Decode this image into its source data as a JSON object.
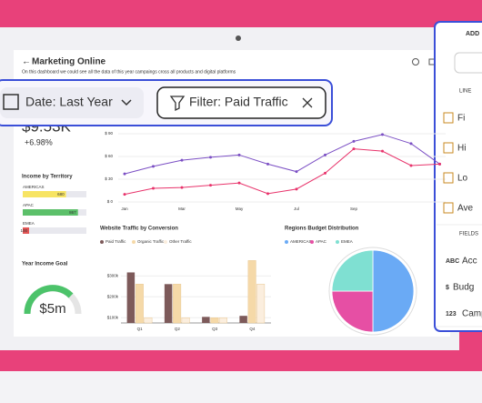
{
  "header": {
    "title": "Marketing Online",
    "subtitle": "On this dashboard we could see all the data of this year campaings cross all products and digital platforms"
  },
  "filters": [
    {
      "label": "Date: Last Year"
    },
    {
      "label": "Filter: Paid Traffic"
    }
  ],
  "kpi": {
    "value": "$9.53K",
    "change": "+6.98%"
  },
  "territory": {
    "title": "Income by Territory",
    "xlim": [
      0,
      1000
    ],
    "rows": [
      {
        "name": "AMERICAS",
        "value": 680,
        "color": "#f7e463"
      },
      {
        "name": "APAC",
        "value": 867,
        "color": "#5cc06a"
      },
      {
        "name": "EMEA",
        "value": 100,
        "color": "#e25555"
      }
    ]
  },
  "goal": {
    "title": "Year Income Goal",
    "value": "$5m"
  },
  "line_chart": {
    "type": "line",
    "x": [
      "Jan",
      null,
      "Mar",
      null,
      "May",
      null,
      "Jul",
      null,
      "Sep",
      null,
      null,
      null
    ],
    "ylim": [
      0,
      90
    ],
    "yticks": [
      {
        "value": 0,
        "label": "$ 0"
      },
      {
        "value": 30,
        "label": "$ 30"
      },
      {
        "value": 60,
        "label": "$ 60"
      },
      {
        "value": 90,
        "label": "$ 90"
      }
    ],
    "series": [
      {
        "color": "#7b4fc4",
        "values": [
          37,
          47,
          55,
          59,
          62,
          50,
          40,
          62,
          80,
          89,
          77,
          50
        ]
      },
      {
        "color": "#e8336b",
        "values": [
          10,
          18,
          19,
          22,
          25,
          11,
          17,
          38,
          70,
          67,
          48,
          50
        ]
      }
    ]
  },
  "bar_chart": {
    "type": "bar",
    "title": "Website Traffic by Conversion",
    "categories": [
      "Q1",
      "Q2",
      "Q3",
      "Q4"
    ],
    "ylim": [
      75,
      380
    ],
    "yticks": [
      {
        "value": 100,
        "label": "$100k"
      },
      {
        "value": 200,
        "label": "$200k"
      },
      {
        "value": 300,
        "label": "$300k"
      }
    ],
    "series": [
      {
        "name": "Paid Traffic",
        "color": "#7d5a5a",
        "values": [
          317,
          261,
          104,
          109
        ]
      },
      {
        "name": "Organic Traffic",
        "color": "#f5d9a8",
        "values": [
          261,
          261,
          100,
          374
        ]
      },
      {
        "name": "Other Traffic",
        "color": "#fbeede",
        "values": [
          100,
          100,
          100,
          261
        ]
      }
    ]
  },
  "pie_chart": {
    "type": "pie",
    "title": "Regions Budget Distribution",
    "categories": [
      "AMERICAS",
      "APAC",
      "EMEA"
    ],
    "values": [
      50,
      25,
      25
    ],
    "colors": [
      "#6aaaf5",
      "#e64fa4",
      "#7fe0d2"
    ]
  },
  "panel": {
    "title": "ADD",
    "sections": [
      {
        "title": "LINE",
        "items": [
          {
            "label": "Fi"
          },
          {
            "label": "Hi"
          },
          {
            "label": "Lo"
          },
          {
            "label": "Ave"
          }
        ]
      },
      {
        "title": "FIELDS",
        "items": [
          {
            "icon": "ABC",
            "label": "Acc"
          },
          {
            "icon": "$",
            "label": "Budg"
          },
          {
            "icon": "123",
            "label": "Camp"
          }
        ]
      }
    ]
  }
}
